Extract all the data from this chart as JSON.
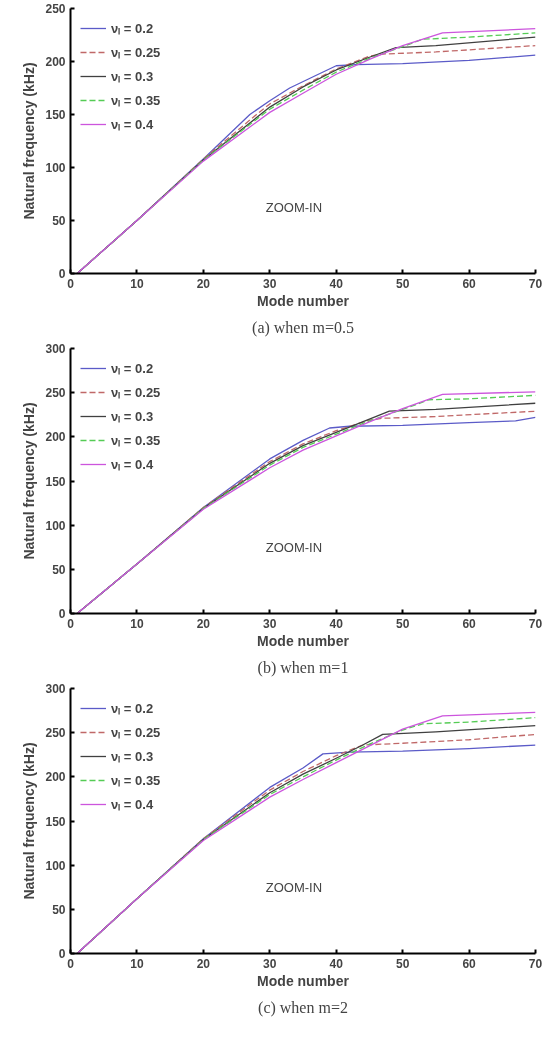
{
  "chart_data": [
    {
      "type": "line",
      "xlabel": "Mode number",
      "ylabel": "Natural frequency (kHz)",
      "annotations": [
        "ZOOM-IN",
        "(a) when m=0.5"
      ],
      "xlim": [
        0,
        70
      ],
      "xticks": [
        0,
        10,
        20,
        30,
        40,
        50,
        60,
        70
      ],
      "ylim": [
        0,
        250
      ],
      "yticks": [
        0,
        50,
        100,
        150,
        200,
        250
      ],
      "grid": false,
      "legend": "top left",
      "series": [
        {
          "name": "νₗ = 0.2",
          "color": "#5b5bc8",
          "line_style": "solid",
          "x": [
            1,
            10,
            20,
            27,
            30,
            33,
            37,
            40,
            43,
            50,
            60,
            70
          ],
          "values": [
            0,
            50,
            108,
            150,
            163,
            175,
            187,
            196,
            197,
            198,
            201,
            206
          ]
        },
        {
          "name": "νₗ = 0.25",
          "color": "#c06868",
          "line_style": "dashed",
          "x": [
            1,
            10,
            20,
            28,
            30,
            35,
            40,
            45,
            47,
            55,
            70
          ],
          "values": [
            0,
            50,
            108,
            150,
            160,
            177,
            193,
            205,
            207,
            209,
            215
          ]
        },
        {
          "name": "νₗ = 0.3",
          "color": "#404040",
          "line_style": "solid",
          "x": [
            1,
            10,
            20,
            30,
            35,
            40,
            45,
            49,
            55,
            70
          ],
          "values": [
            0,
            50,
            107,
            157,
            176,
            192,
            204,
            213,
            215,
            223
          ]
        },
        {
          "name": "νₗ = 0.35",
          "color": "#55cc55",
          "line_style": "dashed",
          "x": [
            1,
            10,
            20,
            30,
            35,
            40,
            45,
            50,
            53,
            60,
            70
          ],
          "values": [
            0,
            50,
            107,
            155,
            173,
            190,
            203,
            214,
            221,
            223,
            227
          ]
        },
        {
          "name": "νₗ = 0.4",
          "color": "#cc55dd",
          "line_style": "solid",
          "x": [
            1,
            10,
            20,
            30,
            35,
            40,
            45,
            50,
            56,
            70
          ],
          "values": [
            0,
            50,
            106,
            152,
            170,
            188,
            202,
            215,
            227,
            231
          ]
        }
      ]
    },
    {
      "type": "line",
      "xlabel": "Mode number",
      "ylabel": "Natural frequency (kHz)",
      "annotations": [
        "ZOOM-IN",
        "(b) when m=1"
      ],
      "xlim": [
        0,
        70
      ],
      "xticks": [
        0,
        10,
        20,
        30,
        40,
        50,
        60,
        70
      ],
      "ylim": [
        0,
        300
      ],
      "yticks": [
        0,
        50,
        100,
        150,
        200,
        250,
        300
      ],
      "grid": false,
      "legend": "top left",
      "series": [
        {
          "name": "νₗ = 0.2",
          "color": "#5b5bc8",
          "line_style": "solid",
          "x": [
            1,
            10,
            20,
            30,
            35,
            39,
            42,
            50,
            60,
            67,
            70
          ],
          "values": [
            0,
            56,
            120,
            175,
            196,
            210,
            212,
            213,
            216,
            218,
            222
          ]
        },
        {
          "name": "νₗ = 0.25",
          "color": "#c06868",
          "line_style": "dashed",
          "x": [
            1,
            10,
            20,
            30,
            35,
            40,
            45,
            47,
            55,
            70
          ],
          "values": [
            0,
            56,
            120,
            172,
            192,
            207,
            219,
            221,
            223,
            229
          ]
        },
        {
          "name": "νₗ = 0.3",
          "color": "#404040",
          "line_style": "solid",
          "x": [
            1,
            10,
            20,
            30,
            35,
            40,
            45,
            48,
            55,
            70
          ],
          "values": [
            0,
            56,
            119,
            170,
            190,
            205,
            220,
            229,
            231,
            238
          ]
        },
        {
          "name": "νₗ = 0.35",
          "color": "#55cc55",
          "line_style": "dashed",
          "x": [
            1,
            10,
            20,
            30,
            35,
            40,
            45,
            50,
            54,
            60,
            70
          ],
          "values": [
            0,
            56,
            119,
            168,
            188,
            203,
            218,
            231,
            242,
            243,
            247
          ]
        },
        {
          "name": "νₗ = 0.4",
          "color": "#cc55dd",
          "line_style": "solid",
          "x": [
            1,
            10,
            20,
            30,
            35,
            40,
            45,
            50,
            56,
            70
          ],
          "values": [
            0,
            56,
            118,
            165,
            185,
            201,
            217,
            232,
            248,
            251
          ]
        }
      ]
    },
    {
      "type": "line",
      "xlabel": "Mode number",
      "ylabel": "Natural frequency (kHz)",
      "annotations": [
        "ZOOM-IN",
        "(c) when m=2"
      ],
      "xlim": [
        0,
        70
      ],
      "xticks": [
        0,
        10,
        20,
        30,
        40,
        50,
        60,
        70
      ],
      "ylim": [
        0,
        300
      ],
      "yticks": [
        0,
        50,
        100,
        150,
        200,
        250,
        300
      ],
      "grid": false,
      "legend": "top left",
      "series": [
        {
          "name": "νₗ = 0.2",
          "color": "#5b5bc8",
          "line_style": "solid",
          "x": [
            1,
            10,
            20,
            30,
            35,
            38,
            42,
            50,
            60,
            70
          ],
          "values": [
            0,
            62,
            130,
            188,
            210,
            226,
            228,
            229,
            232,
            236
          ]
        },
        {
          "name": "νₗ = 0.25",
          "color": "#c06868",
          "line_style": "dashed",
          "x": [
            1,
            10,
            20,
            30,
            35,
            40,
            44,
            50,
            60,
            70
          ],
          "values": [
            0,
            62,
            130,
            185,
            206,
            224,
            236,
            238,
            242,
            248
          ]
        },
        {
          "name": "νₗ = 0.3",
          "color": "#404040",
          "line_style": "solid",
          "x": [
            1,
            10,
            20,
            30,
            35,
            40,
            44,
            47,
            55,
            70
          ],
          "values": [
            0,
            62,
            129,
            182,
            203,
            221,
            236,
            248,
            251,
            258
          ]
        },
        {
          "name": "νₗ = 0.35",
          "color": "#55cc55",
          "line_style": "dashed",
          "x": [
            1,
            10,
            20,
            30,
            35,
            40,
            45,
            50,
            53,
            60,
            70
          ],
          "values": [
            0,
            62,
            129,
            180,
            200,
            219,
            237,
            253,
            260,
            262,
            267
          ]
        },
        {
          "name": "νₗ = 0.4",
          "color": "#cc55dd",
          "line_style": "solid",
          "x": [
            1,
            10,
            20,
            30,
            35,
            40,
            45,
            50,
            56,
            70
          ],
          "values": [
            0,
            62,
            128,
            177,
            197,
            216,
            235,
            254,
            269,
            273
          ]
        }
      ]
    }
  ]
}
